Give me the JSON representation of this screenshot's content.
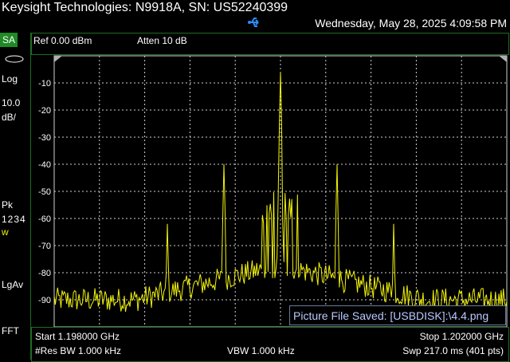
{
  "title_bar": {
    "device_title": "Keysight Technologies: N9918A, SN: US52240399",
    "datetime": "Wednesday, May 28, 2025 4:09:58 PM",
    "usb_icon": "usb-icon"
  },
  "mode": {
    "label": "SA"
  },
  "left_rail": {
    "scale_type": "Log",
    "scale_value": "10.0",
    "scale_unit": "dB/",
    "detector": "Pk",
    "traces": "1234",
    "trace_mode": "w",
    "avg_type": "LgAv",
    "sweep_type": "FFT"
  },
  "header": {
    "ref": "Ref 0.00 dBm",
    "atten": "Atten 10 dB"
  },
  "footer": {
    "start": "Start 1.198000 GHz",
    "stop": "Stop 1.202000 GHz",
    "res_bw": "#Res BW 1.000 kHz",
    "vbw": "VBW 1.000 kHz",
    "sweep": "Swp 217.0 ms (401 pts)"
  },
  "notification": {
    "text": "Picture File Saved: [USBDISK]:\\4.4.png"
  },
  "colors": {
    "trace": "#f2f20a",
    "grid": "#ffffff",
    "border": "#1f6b24",
    "mode": "#1f8a26"
  },
  "chart_data": {
    "type": "line",
    "x_range_ghz": [
      1.198,
      1.202
    ],
    "ylim": [
      -100,
      0
    ],
    "y_ticks": [
      "-10",
      "-20",
      "-30",
      "-40",
      "-50",
      "-60",
      "-70",
      "-80",
      "-90"
    ],
    "points": 401,
    "grid": true,
    "series": [
      {
        "peaks": [
          {
            "x_ghz": 1.2,
            "y": -6
          },
          {
            "x_ghz": 1.1995,
            "y": -40
          },
          {
            "x_ghz": 1.2005,
            "y": -40
          },
          {
            "x_ghz": 1.199,
            "y": -62
          },
          {
            "x_ghz": 1.201,
            "y": -62
          }
        ],
        "noise_floor_dbm": -90
      }
    ]
  }
}
